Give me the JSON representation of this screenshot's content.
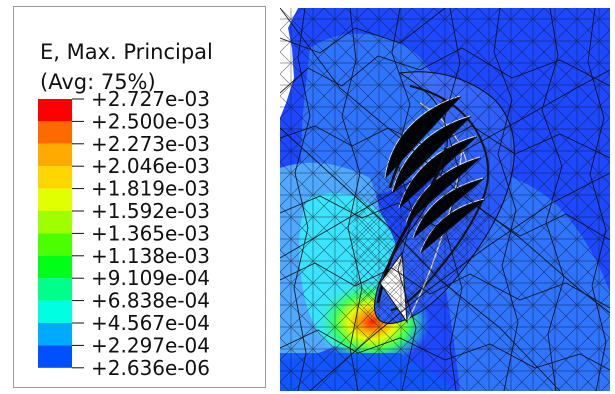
{
  "legend": {
    "title": "E, Max. Principal",
    "subtitle": "(Avg: 75%)",
    "levels": [
      {
        "label": "+2.727e-03"
      },
      {
        "label": "+2.500e-03"
      },
      {
        "label": "+2.273e-03"
      },
      {
        "label": "+2.046e-03"
      },
      {
        "label": "+1.819e-03"
      },
      {
        "label": "+1.592e-03"
      },
      {
        "label": "+1.365e-03"
      },
      {
        "label": "+1.138e-03"
      },
      {
        "label": "+9.109e-04"
      },
      {
        "label": "+6.838e-04"
      },
      {
        "label": "+4.567e-04"
      },
      {
        "label": "+2.297e-04"
      },
      {
        "label": "+2.636e-06"
      }
    ],
    "band_colors": [
      "#ff0000",
      "#ff6a00",
      "#ffaa00",
      "#ffd600",
      "#e1ff00",
      "#9fff00",
      "#4cff00",
      "#00ff18",
      "#00ff8a",
      "#00ffe0",
      "#00aaff",
      "#0050ff"
    ]
  },
  "model_view": {
    "palette": {
      "deep_blue": "#1d48ff",
      "mid_blue": "#2f74ff",
      "light_blue": "#51a8ff",
      "cyan": "#39e7ff",
      "green": "#39ff63",
      "yellow": "#e6ff00",
      "orange": "#ff9000",
      "red": "#ff1c00",
      "mesh_line": "#111111",
      "white": "#ffffff"
    }
  }
}
